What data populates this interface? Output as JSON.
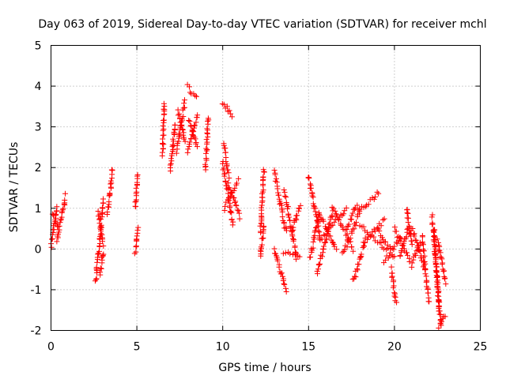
{
  "chart_data": {
    "type": "scatter",
    "title": "Day 063 of 2019, Sidereal Day-to-day VTEC variation (SDTVAR) for receiver mchl",
    "xlabel": "GPS time / hours",
    "ylabel": "SDTVAR / TECUs",
    "xlim": [
      0,
      25
    ],
    "ylim": [
      -2,
      5
    ],
    "xticks": [
      0,
      5,
      10,
      15,
      20,
      25
    ],
    "yticks": [
      -2,
      -1,
      0,
      1,
      2,
      3,
      4,
      5
    ],
    "xtick_labels": [
      "0",
      "5",
      "10",
      "15",
      "20",
      "25"
    ],
    "ytick_labels": [
      "-2",
      "-1",
      "0",
      "1",
      "2",
      "3",
      "4",
      "5"
    ],
    "grid": true,
    "marker": "+",
    "color": "#ff0000",
    "series": [
      {
        "name": "SDTVAR",
        "segments": [
          {
            "t0": 0.0,
            "t1": 0.35,
            "y0": 0.1,
            "y1": 1.0
          },
          {
            "t0": 0.1,
            "t1": 0.45,
            "y0": 0.9,
            "y1": 0.5
          },
          {
            "t0": 0.35,
            "t1": 0.85,
            "y0": 0.2,
            "y1": 1.3
          },
          {
            "t0": 2.6,
            "t1": 3.05,
            "y0": -0.8,
            "y1": 1.2
          },
          {
            "t0": 2.75,
            "t1": 3.05,
            "y0": 0.9,
            "y1": 0.1
          },
          {
            "t0": 2.85,
            "t1": 3.05,
            "y0": -0.6,
            "y1": -0.1
          },
          {
            "t0": 3.3,
            "t1": 3.6,
            "y0": 0.9,
            "y1": 2.0
          },
          {
            "t0": 4.9,
            "t1": 5.05,
            "y0": -0.1,
            "y1": 0.5
          },
          {
            "t0": 4.9,
            "t1": 5.05,
            "y0": 1.0,
            "y1": 1.8
          },
          {
            "t0": 6.5,
            "t1": 6.6,
            "y0": 2.3,
            "y1": 3.6
          },
          {
            "t0": 6.95,
            "t1": 7.25,
            "y0": 1.9,
            "y1": 3.1
          },
          {
            "t0": 7.3,
            "t1": 7.8,
            "y0": 2.4,
            "y1": 3.6
          },
          {
            "t0": 7.4,
            "t1": 7.8,
            "y0": 3.4,
            "y1": 2.6
          },
          {
            "t0": 7.95,
            "t1": 8.45,
            "y0": 4.0,
            "y1": 3.7
          },
          {
            "t0": 7.95,
            "t1": 8.55,
            "y0": 2.4,
            "y1": 3.3
          },
          {
            "t0": 8.05,
            "t1": 8.5,
            "y0": 3.2,
            "y1": 2.5
          },
          {
            "t0": 9.0,
            "t1": 9.15,
            "y0": 1.9,
            "y1": 3.2
          },
          {
            "t0": 10.0,
            "t1": 10.55,
            "y0": 3.6,
            "y1": 3.3
          },
          {
            "t0": 10.05,
            "t1": 10.35,
            "y0": 2.6,
            "y1": 1.8
          },
          {
            "t0": 10.0,
            "t1": 10.6,
            "y0": 2.1,
            "y1": 0.6
          },
          {
            "t0": 10.1,
            "t1": 10.9,
            "y0": 1.0,
            "y1": 1.7
          },
          {
            "t0": 10.3,
            "t1": 11.0,
            "y0": 1.6,
            "y1": 0.8
          },
          {
            "t0": 12.2,
            "t1": 12.4,
            "y0": 0.4,
            "y1": 2.0
          },
          {
            "t0": 12.2,
            "t1": 12.4,
            "y0": -0.2,
            "y1": 0.6
          },
          {
            "t0": 13.0,
            "t1": 13.7,
            "y0": 1.9,
            "y1": 0.4
          },
          {
            "t0": 13.0,
            "t1": 13.7,
            "y0": 0.0,
            "y1": -1.0
          },
          {
            "t0": 13.6,
            "t1": 14.3,
            "y0": 1.4,
            "y1": -0.2
          },
          {
            "t0": 13.5,
            "t1": 14.5,
            "y0": -0.1,
            "y1": -0.2
          },
          {
            "t0": 14.0,
            "t1": 14.5,
            "y0": 0.4,
            "y1": 1.1
          },
          {
            "t0": 15.0,
            "t1": 15.7,
            "y0": 1.8,
            "y1": 0.2
          },
          {
            "t0": 15.1,
            "t1": 15.6,
            "y0": -0.2,
            "y1": 0.8
          },
          {
            "t0": 15.6,
            "t1": 16.6,
            "y0": 0.9,
            "y1": 0.0
          },
          {
            "t0": 15.5,
            "t1": 16.4,
            "y0": -0.6,
            "y1": 0.9
          },
          {
            "t0": 15.8,
            "t1": 17.2,
            "y0": 0.3,
            "y1": 1.0
          },
          {
            "t0": 16.4,
            "t1": 17.6,
            "y0": 1.0,
            "y1": 0.0
          },
          {
            "t0": 17.0,
            "t1": 18.0,
            "y0": -0.1,
            "y1": 0.9
          },
          {
            "t0": 17.2,
            "t1": 17.8,
            "y0": 0.5,
            "y1": 1.1
          },
          {
            "t0": 17.6,
            "t1": 18.3,
            "y0": -0.8,
            "y1": 0.2
          },
          {
            "t0": 17.9,
            "t1": 19.1,
            "y0": 0.9,
            "y1": 1.4
          },
          {
            "t0": 18.0,
            "t1": 19.5,
            "y0": 0.6,
            "y1": 0.0
          },
          {
            "t0": 18.2,
            "t1": 19.4,
            "y0": 0.2,
            "y1": 0.7
          },
          {
            "t0": 19.0,
            "t1": 20.0,
            "y0": 0.5,
            "y1": -0.2
          },
          {
            "t0": 19.4,
            "t1": 20.4,
            "y0": -0.3,
            "y1": 0.3
          },
          {
            "t0": 19.8,
            "t1": 20.1,
            "y0": -0.5,
            "y1": -1.3
          },
          {
            "t0": 20.0,
            "t1": 20.9,
            "y0": 0.5,
            "y1": -0.3
          },
          {
            "t0": 20.3,
            "t1": 20.8,
            "y0": -0.2,
            "y1": 0.5
          },
          {
            "t0": 20.7,
            "t1": 21.0,
            "y0": 1.0,
            "y1": 0.1
          },
          {
            "t0": 21.0,
            "t1": 21.8,
            "y0": 0.5,
            "y1": -0.5
          },
          {
            "t0": 21.0,
            "t1": 21.5,
            "y0": -0.4,
            "y1": 0.2
          },
          {
            "t0": 21.6,
            "t1": 22.0,
            "y0": 0.3,
            "y1": -1.3
          },
          {
            "t0": 22.2,
            "t1": 22.7,
            "y0": 0.8,
            "y1": -1.9
          },
          {
            "t0": 22.3,
            "t1": 22.6,
            "y0": 0.5,
            "y1": -1.5
          },
          {
            "t0": 22.5,
            "t1": 23.0,
            "y0": 0.2,
            "y1": -0.8
          },
          {
            "t0": 22.6,
            "t1": 22.95,
            "y0": -1.9,
            "y1": -1.6
          }
        ]
      }
    ]
  }
}
